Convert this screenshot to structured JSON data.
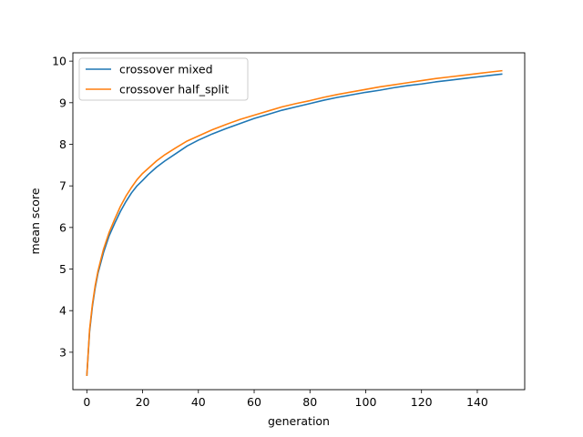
{
  "chart_data": {
    "type": "line",
    "title": "",
    "xlabel": "generation",
    "ylabel": "mean score",
    "xlim": [
      -5,
      157
    ],
    "ylim": [
      2.1,
      10.2
    ],
    "xticks": [
      0,
      20,
      40,
      60,
      80,
      100,
      120,
      140
    ],
    "yticks": [
      3,
      4,
      5,
      6,
      7,
      8,
      9,
      10
    ],
    "grid": false,
    "legend_position": "top-left",
    "series": [
      {
        "name": "crossover mixed",
        "color": "#1f77b4",
        "x": [
          0,
          1,
          2,
          3,
          4,
          5,
          6,
          8,
          10,
          12,
          14,
          16,
          18,
          20,
          22,
          25,
          28,
          32,
          36,
          40,
          45,
          50,
          55,
          60,
          65,
          70,
          75,
          80,
          85,
          90,
          95,
          100,
          105,
          110,
          115,
          120,
          125,
          130,
          135,
          140,
          145,
          149
        ],
        "y": [
          2.43,
          3.5,
          4.1,
          4.55,
          4.9,
          5.15,
          5.4,
          5.8,
          6.1,
          6.38,
          6.62,
          6.83,
          7.0,
          7.13,
          7.27,
          7.45,
          7.6,
          7.78,
          7.96,
          8.1,
          8.25,
          8.38,
          8.5,
          8.62,
          8.72,
          8.82,
          8.9,
          8.98,
          9.06,
          9.13,
          9.19,
          9.25,
          9.3,
          9.36,
          9.41,
          9.45,
          9.5,
          9.54,
          9.58,
          9.62,
          9.66,
          9.69
        ]
      },
      {
        "name": "crossover half_split",
        "color": "#ff7f0e",
        "x": [
          0,
          1,
          2,
          3,
          4,
          5,
          6,
          8,
          10,
          12,
          14,
          16,
          18,
          20,
          22,
          25,
          28,
          32,
          36,
          40,
          45,
          50,
          55,
          60,
          65,
          70,
          75,
          80,
          85,
          90,
          95,
          100,
          105,
          110,
          115,
          120,
          125,
          130,
          135,
          140,
          145,
          149
        ],
        "y": [
          2.43,
          3.55,
          4.15,
          4.6,
          4.95,
          5.22,
          5.48,
          5.88,
          6.2,
          6.5,
          6.75,
          6.96,
          7.15,
          7.3,
          7.42,
          7.6,
          7.75,
          7.92,
          8.08,
          8.2,
          8.35,
          8.48,
          8.6,
          8.7,
          8.8,
          8.9,
          8.98,
          9.05,
          9.13,
          9.2,
          9.26,
          9.32,
          9.38,
          9.43,
          9.48,
          9.53,
          9.58,
          9.62,
          9.66,
          9.7,
          9.74,
          9.77
        ]
      }
    ]
  }
}
